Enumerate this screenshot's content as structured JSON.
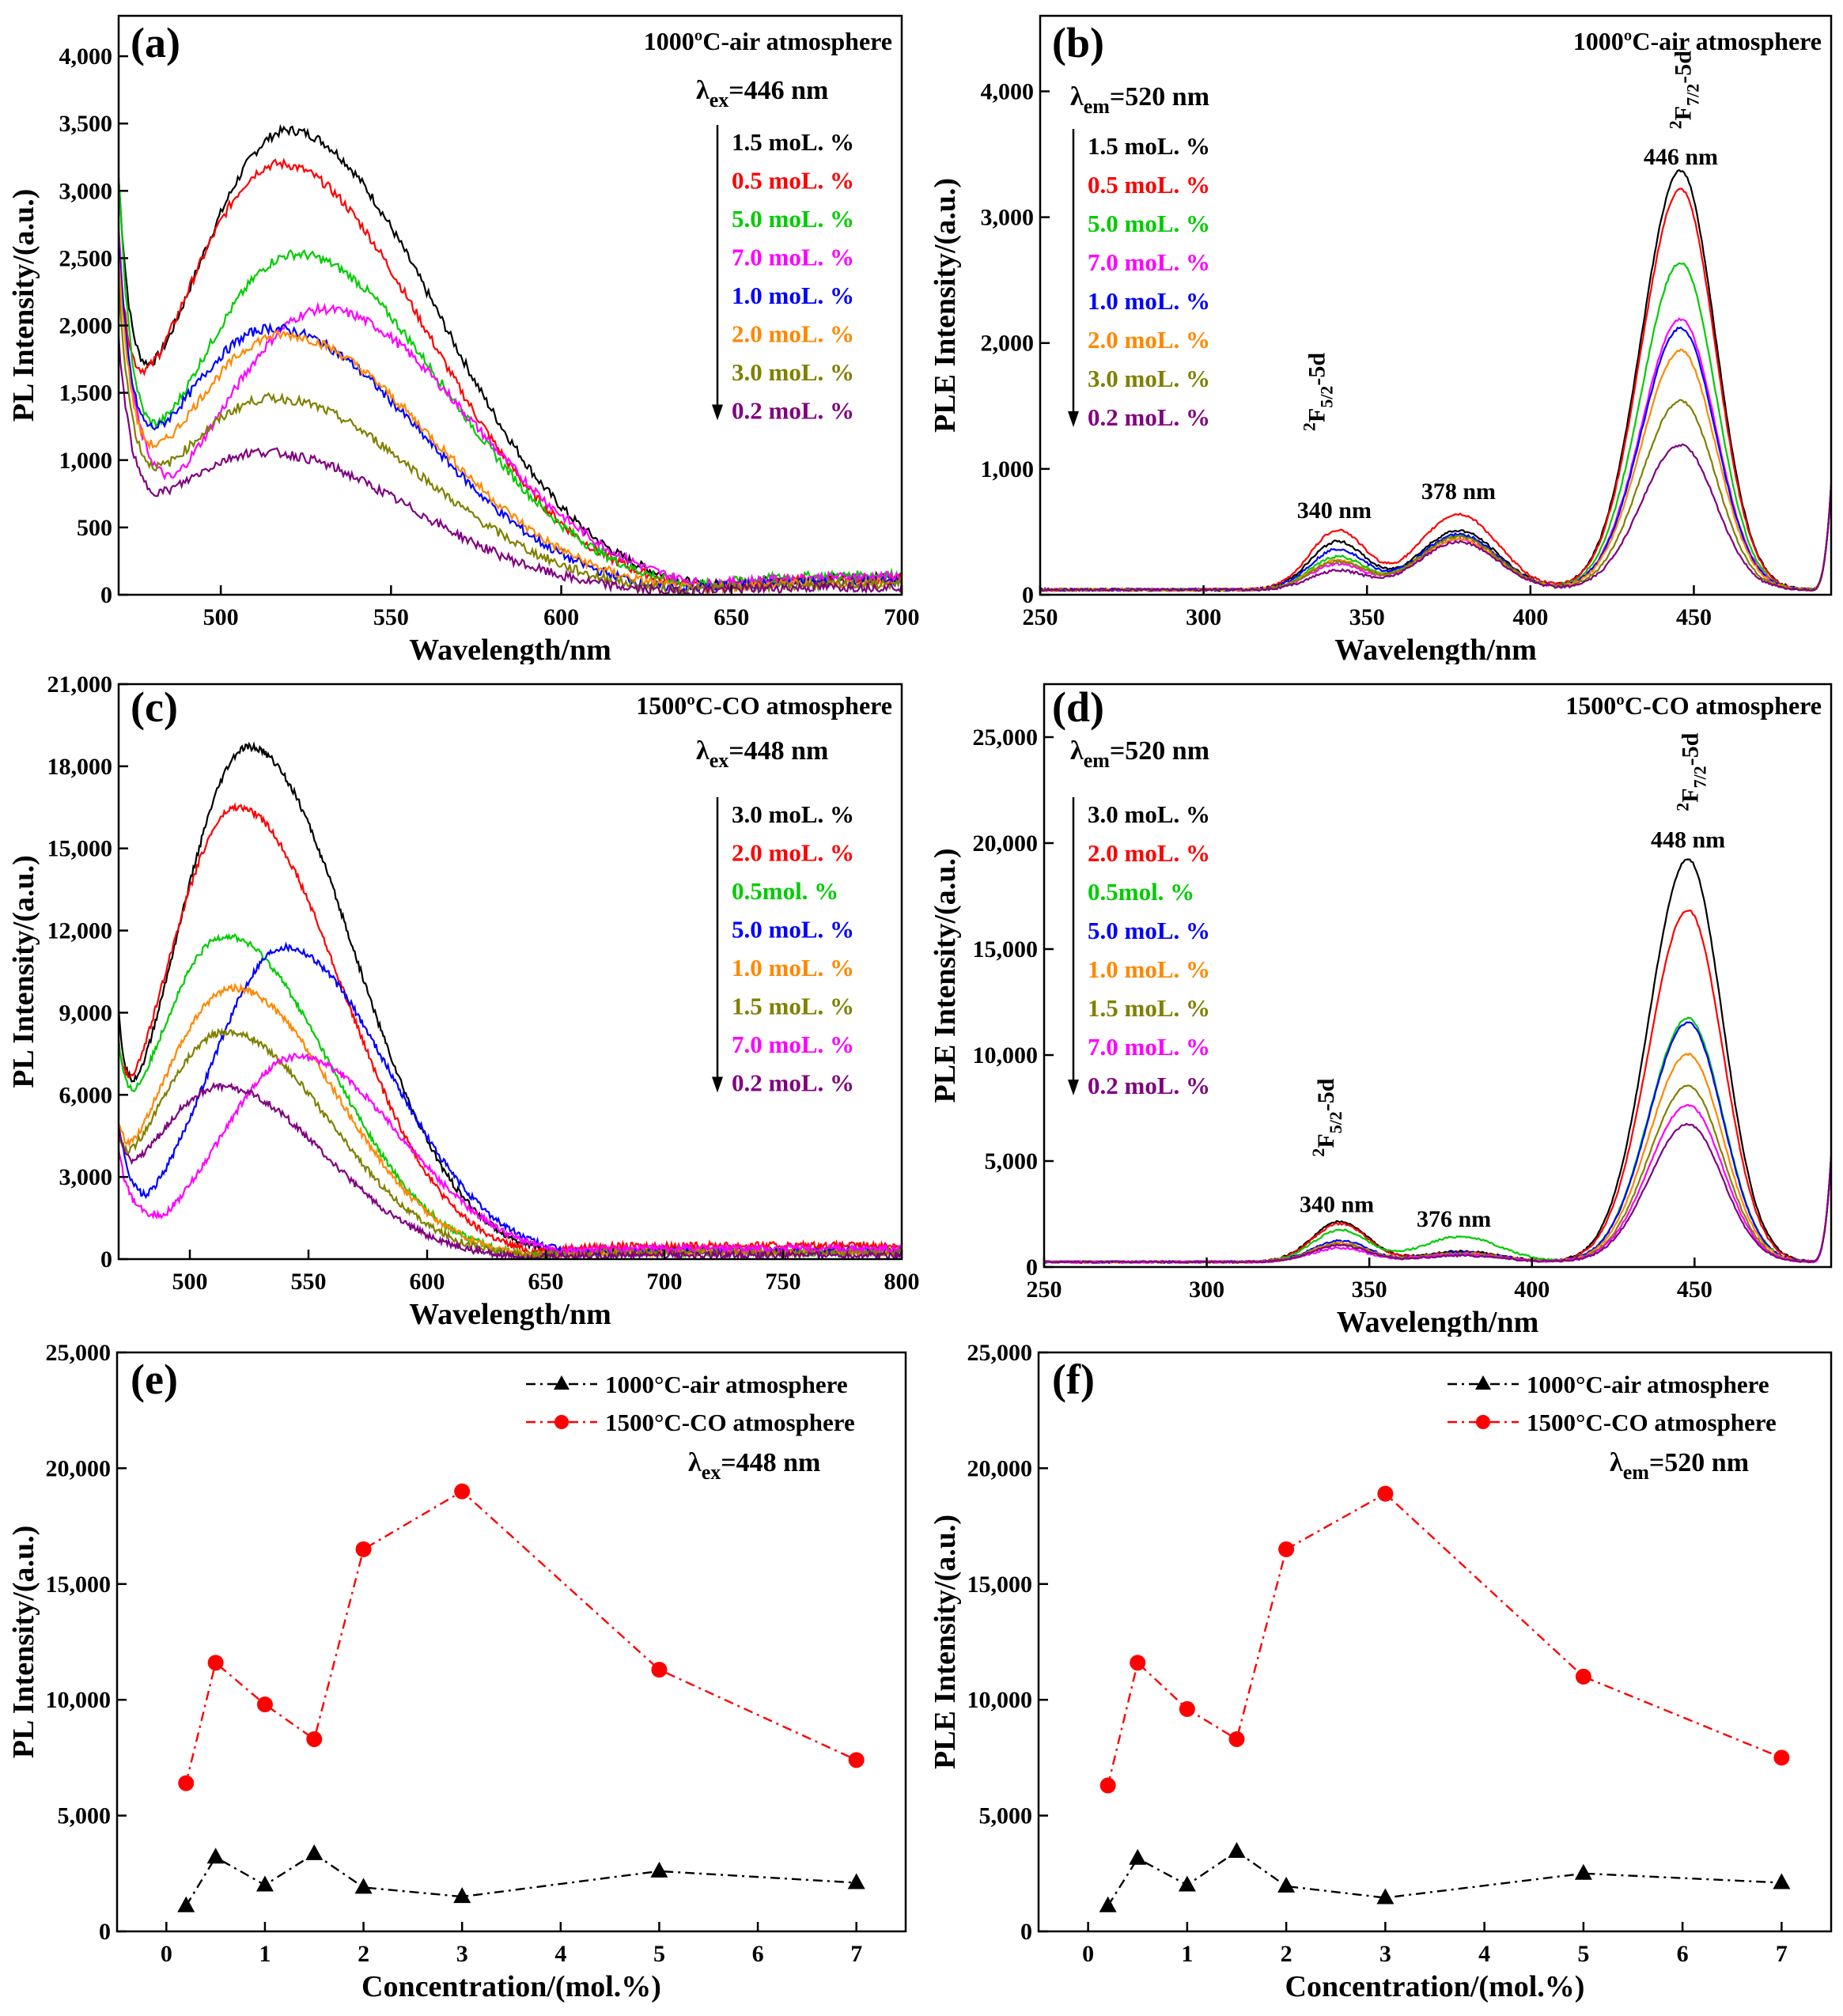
{
  "chart_data": [
    {
      "id": "a",
      "type": "line",
      "label": "(a)",
      "condition": "1000ºC-air atmosphere",
      "lambda": {
        "symbol": "λ",
        "sub": "ex",
        "value": "=446 nm"
      },
      "xlabel": "Wavelength/nm",
      "ylabel": "PL Intensity/(a.u.)",
      "xlim": [
        470,
        700
      ],
      "ylim": [
        0,
        4300
      ],
      "xticks": [
        500,
        550,
        600,
        650,
        700
      ],
      "yticks": [
        0,
        500,
        1000,
        1500,
        2000,
        2500,
        3000,
        3500,
        4000
      ],
      "ytick_labels": [
        "0",
        "500",
        "1,000",
        "1,500",
        "2,000",
        "2,500",
        "3,000",
        "3,500",
        "4,000"
      ],
      "series": [
        {
          "name": "1.5 moL. %",
          "color": "#000000",
          "peak": 3450,
          "center": 520,
          "left": 2000,
          "tail": 130,
          "dip": 1800,
          "dipx": 478,
          "start": 3100
        },
        {
          "name": "0.5 moL. %",
          "color": "#ff0000",
          "peak": 3200,
          "center": 517,
          "left": 2000,
          "tail": 120,
          "dip": 1980,
          "dipx": 476,
          "start": 2500
        },
        {
          "name": "5.0 moL. %",
          "color": "#00cc00",
          "peak": 2530,
          "center": 522,
          "left": 1500,
          "tail": 150,
          "dip": 1230,
          "dipx": 478,
          "start": 3100
        },
        {
          "name": "7.0 moL. %",
          "color": "#ff00ff",
          "peak": 2120,
          "center": 530,
          "left": 1400,
          "tail": 140,
          "dip": 1250,
          "dipx": 478,
          "start": 2700
        },
        {
          "name": "1.0 moL. %",
          "color": "#0000ff",
          "peak": 1980,
          "center": 515,
          "left": 1400,
          "tail": 100,
          "dip": 1250,
          "dipx": 478,
          "start": 2600
        },
        {
          "name": "2.0 moL. %",
          "color": "#ff8800",
          "peak": 1930,
          "center": 518,
          "left": 1400,
          "tail": 90,
          "dip": 1200,
          "dipx": 478,
          "start": 2500
        },
        {
          "name": "3.0 moL. %",
          "color": "#808000",
          "peak": 1460,
          "center": 515,
          "left": 1200,
          "tail": 80,
          "dip": 980,
          "dipx": 478,
          "start": 2300
        },
        {
          "name": "0.2 moL. %",
          "color": "#800080",
          "peak": 1060,
          "center": 512,
          "left": 900,
          "tail": 60,
          "dip": 860,
          "dipx": 480,
          "start": 1900
        }
      ]
    },
    {
      "id": "b",
      "type": "line",
      "label": "(b)",
      "condition": "1000ºC-air atmosphere",
      "lambda": {
        "symbol": "λ",
        "sub": "em",
        "value": "=520 nm"
      },
      "xlabel": "Wavelength/nm",
      "ylabel": "PLE Intensity/(a.u.)",
      "xlim": [
        250,
        492
      ],
      "ylim": [
        0,
        4600
      ],
      "xticks": [
        250,
        300,
        350,
        400,
        450
      ],
      "yticks": [
        0,
        1000,
        2000,
        3000,
        4000
      ],
      "ytick_labels": [
        "0",
        "1,000",
        "2,000",
        "3,000",
        "4,000"
      ],
      "annotations": [
        {
          "text": "340 nm",
          "x": 340,
          "y": 610
        },
        {
          "text": "378 nm",
          "x": 378,
          "y": 760
        },
        {
          "text": "446 nm",
          "x": 446,
          "y": 3420
        }
      ],
      "transitions": [
        {
          "base": "F",
          "sup": "2",
          "sub": "5/2",
          "rest": "-5d",
          "x": 337,
          "y": 1300
        },
        {
          "base": "F",
          "sup": "2",
          "sub": "7/2",
          "rest": "-5d",
          "x": 449,
          "y": 3700
        }
      ],
      "series": [
        {
          "name": "1.5 moL. %",
          "color": "#000000",
          "peak": 3330,
          "p340": 380,
          "p378": 470
        },
        {
          "name": "0.5 moL. %",
          "color": "#ff0000",
          "peak": 3180,
          "p340": 470,
          "p378": 600
        },
        {
          "name": "5.0 moL. %",
          "color": "#00cc00",
          "peak": 2600,
          "p340": 260,
          "p378": 430
        },
        {
          "name": "7.0 moL. %",
          "color": "#ff00ff",
          "peak": 2150,
          "p340": 200,
          "p378": 400
        },
        {
          "name": "1.0 moL. %",
          "color": "#0000ff",
          "peak": 2080,
          "p340": 320,
          "p378": 440
        },
        {
          "name": "2.0 moL. %",
          "color": "#ff8800",
          "peak": 1900,
          "p340": 230,
          "p378": 400
        },
        {
          "name": "3.0 moL. %",
          "color": "#808000",
          "peak": 1500,
          "p340": 220,
          "p378": 420
        },
        {
          "name": "0.2 moL. %",
          "color": "#800080",
          "peak": 1150,
          "p340": 150,
          "p378": 380
        }
      ]
    },
    {
      "id": "c",
      "type": "line",
      "label": "(c)",
      "condition": "1500ºC-CO  atmosphere",
      "lambda": {
        "symbol": "λ",
        "sub": "ex",
        "value": "=448 nm"
      },
      "xlabel": "Wavelength/nm",
      "ylabel": "PL Intensity/(a.u.)",
      "xlim": [
        470,
        800
      ],
      "ylim": [
        0,
        21000
      ],
      "xticks": [
        500,
        550,
        600,
        650,
        700,
        750,
        800
      ],
      "yticks": [
        0,
        3000,
        6000,
        9000,
        12000,
        15000,
        18000,
        21000
      ],
      "ytick_labels": [
        "0",
        "3,000",
        "6,000",
        "9,000",
        "12,000",
        "15,000",
        "18,000",
        "21,000"
      ],
      "series": [
        {
          "name": "3.0 moL. %",
          "color": "#000000",
          "peak": 18700,
          "center": 525,
          "left": 5500,
          "tail": 300,
          "dip": 5600,
          "dipx": 473,
          "start": 9000
        },
        {
          "name": "2.0 moL. %",
          "color": "#ff0000",
          "peak": 16500,
          "center": 520,
          "left": 5000,
          "tail": 500,
          "dip": 5700,
          "dipx": 473,
          "start": 8000
        },
        {
          "name": "0.5mol. %",
          "color": "#00cc00",
          "peak": 11800,
          "center": 515,
          "left": 4500,
          "tail": 250,
          "dip": 5000,
          "dipx": 474,
          "start": 8000
        },
        {
          "name": "5.0 moL. %",
          "color": "#0000ff",
          "peak": 11400,
          "center": 540,
          "left": 3300,
          "tail": 300,
          "dip": 3300,
          "dipx": 475,
          "start": 5000
        },
        {
          "name": "1.0 moL. %",
          "color": "#ff8800",
          "peak": 9900,
          "center": 518,
          "left": 3200,
          "tail": 250,
          "dip": 3400,
          "dipx": 475,
          "start": 5000
        },
        {
          "name": "1.5 moL. %",
          "color": "#808000",
          "peak": 8300,
          "center": 515,
          "left": 3000,
          "tail": 250,
          "dip": 3100,
          "dipx": 475,
          "start": 4500
        },
        {
          "name": "7.0 moL. %",
          "color": "#ff00ff",
          "peak": 7400,
          "center": 545,
          "left": 2400,
          "tail": 400,
          "dip": 2500,
          "dipx": 476,
          "start": 4000
        },
        {
          "name": "0.2 moL. %",
          "color": "#800080",
          "peak": 6300,
          "center": 513,
          "left": 3000,
          "tail": 150,
          "dip": 3300,
          "dipx": 475,
          "start": 4800
        }
      ]
    },
    {
      "id": "d",
      "type": "line",
      "label": "(d)",
      "condition": "1500ºC-CO  atmosphere",
      "lambda": {
        "symbol": "λ",
        "sub": "em",
        "value": "=520 nm"
      },
      "xlabel": "Wavelength/nm",
      "ylabel": "PLE Intensity/(a.u.)",
      "xlim": [
        250,
        492
      ],
      "ylim": [
        0,
        27500
      ],
      "xticks": [
        250,
        300,
        350,
        400,
        450
      ],
      "yticks": [
        0,
        5000,
        10000,
        15000,
        20000,
        25000
      ],
      "ytick_labels": [
        "0",
        "5,000",
        "10,000",
        "15,000",
        "20,000",
        "25,000"
      ],
      "annotations": [
        {
          "text": "340 nm",
          "x": 340,
          "y": 2600
        },
        {
          "text": "376 nm",
          "x": 376,
          "y": 1900
        },
        {
          "text": "448 nm",
          "x": 448,
          "y": 19800
        }
      ],
      "transitions": [
        {
          "base": "F",
          "sup": "2",
          "sub": "5/2",
          "rest": "-5d",
          "x": 339,
          "y": 5200
        },
        {
          "base": "F",
          "sup": "2",
          "sub": "7/2",
          "rest": "-5d",
          "x": 451,
          "y": 21500
        }
      ],
      "series": [
        {
          "name": "3.0 moL. %",
          "color": "#000000",
          "peak": 19000,
          "p340": 1900,
          "p378": 500
        },
        {
          "name": "2.0 moL. %",
          "color": "#ff0000",
          "peak": 16600,
          "p340": 1800,
          "p378": 450
        },
        {
          "name": "0.5mol. %",
          "color": "#00cc00",
          "peak": 11500,
          "p340": 1500,
          "p378": 1200
        },
        {
          "name": "5.0 moL. %",
          "color": "#0000ff",
          "peak": 11300,
          "p340": 1000,
          "p378": 450
        },
        {
          "name": "1.0 moL. %",
          "color": "#ff8800",
          "peak": 9800,
          "p340": 900,
          "p378": 400
        },
        {
          "name": "1.5 moL. %",
          "color": "#808000",
          "peak": 8300,
          "p340": 850,
          "p378": 400
        },
        {
          "name": "7.0 moL. %",
          "color": "#ff00ff",
          "peak": 7400,
          "p340": 650,
          "p378": 350
        },
        {
          "name": "0.2 moL. %",
          "color": "#800080",
          "peak": 6500,
          "p340": 800,
          "p378": 300
        }
      ]
    },
    {
      "id": "e",
      "type": "line",
      "label": "(e)",
      "lambda": {
        "symbol": "λ",
        "sub": "ex",
        "value": "=448 nm"
      },
      "xlabel": "Concentration/(mol.%)",
      "ylabel": "PL Intensity/(a.u.)",
      "xlim": [
        -0.5,
        7.5
      ],
      "ylim": [
        0,
        25000
      ],
      "xticks": [
        0,
        1,
        2,
        3,
        4,
        5,
        6,
        7
      ],
      "yticks": [
        0,
        5000,
        10000,
        15000,
        20000,
        25000
      ],
      "ytick_labels": [
        "0",
        "5,000",
        "10,000",
        "15,000",
        "20,000",
        "25,000"
      ],
      "series": [
        {
          "name": "1000°C-air atmosphere",
          "color": "#000000",
          "marker": "triangle",
          "x": [
            0.2,
            0.5,
            1.0,
            1.5,
            2.0,
            3.0,
            5.0,
            7.0
          ],
          "y": [
            1100,
            3200,
            2000,
            3350,
            1900,
            1500,
            2600,
            2100
          ]
        },
        {
          "name": "1500°C-CO atmosphere",
          "color": "#ff0000",
          "marker": "circle",
          "x": [
            0.2,
            0.5,
            1.0,
            1.5,
            2.0,
            3.0,
            5.0,
            7.0
          ],
          "y": [
            6400,
            11600,
            9800,
            8300,
            16500,
            19000,
            11300,
            7400
          ]
        }
      ]
    },
    {
      "id": "f",
      "type": "line",
      "label": "(f)",
      "lambda": {
        "symbol": "λ",
        "sub": "em",
        "value": "=520 nm"
      },
      "xlabel": "Concentration/(mol.%)",
      "ylabel": "PLE Intensity/(a.u.)",
      "xlim": [
        -0.5,
        7.5
      ],
      "ylim": [
        0,
        25000
      ],
      "xticks": [
        0,
        1,
        2,
        3,
        4,
        5,
        6,
        7
      ],
      "yticks": [
        0,
        5000,
        10000,
        15000,
        20000,
        25000
      ],
      "ytick_labels": [
        "0",
        "5,000",
        "10,000",
        "15,000",
        "20,000",
        "25,000"
      ],
      "series": [
        {
          "name": "1000°C-air atmosphere",
          "color": "#000000",
          "marker": "triangle",
          "x": [
            0.2,
            0.5,
            1.0,
            1.5,
            2.0,
            3.0,
            5.0,
            7.0
          ],
          "y": [
            1100,
            3150,
            2000,
            3450,
            1950,
            1450,
            2500,
            2100
          ]
        },
        {
          "name": "1500°C-CO  atmosphere",
          "color": "#ff0000",
          "marker": "circle",
          "x": [
            0.2,
            0.5,
            1.0,
            1.5,
            2.0,
            3.0,
            5.0,
            7.0
          ],
          "y": [
            6300,
            11600,
            9600,
            8300,
            16500,
            18900,
            11000,
            7500
          ]
        }
      ]
    }
  ]
}
